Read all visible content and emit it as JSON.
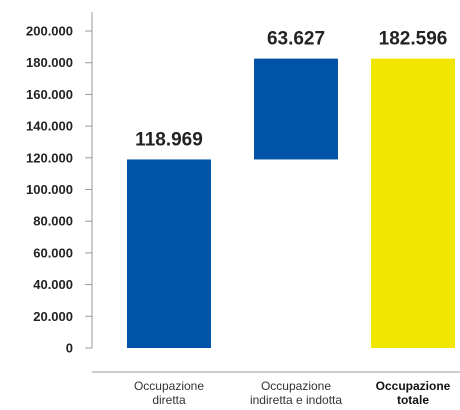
{
  "chart_data": {
    "type": "bar",
    "subtype": "waterfall",
    "categories": [
      [
        "Occupazione",
        "diretta"
      ],
      [
        "Occupazione",
        "indiretta e indotta"
      ],
      [
        "Occupazione",
        "totale"
      ]
    ],
    "bars": [
      {
        "base": 0,
        "value": 118969,
        "label": "118.969",
        "color": "#0053a6"
      },
      {
        "base": 118969,
        "value": 63627,
        "label": "63.627",
        "color": "#0053a6"
      },
      {
        "base": 0,
        "value": 182596,
        "label": "182.596",
        "color": "#f0e600"
      }
    ],
    "highlight_category": 2,
    "yticks": [
      {
        "value": 0,
        "label": "0"
      },
      {
        "value": 20000,
        "label": "20.000"
      },
      {
        "value": 40000,
        "label": "40.000"
      },
      {
        "value": 60000,
        "label": "60.000"
      },
      {
        "value": 80000,
        "label": "80.000"
      },
      {
        "value": 100000,
        "label": "100.000"
      },
      {
        "value": 120000,
        "label": "120.000"
      },
      {
        "value": 140000,
        "label": "140.000"
      },
      {
        "value": 160000,
        "label": "160.000"
      },
      {
        "value": 180000,
        "label": "180.000"
      },
      {
        "value": 200000,
        "label": "200.000"
      }
    ],
    "ylim": [
      0,
      212000
    ],
    "title": "",
    "xlabel": "",
    "ylabel": "",
    "grid": false,
    "legend": "none",
    "axis_color": "#999999"
  }
}
